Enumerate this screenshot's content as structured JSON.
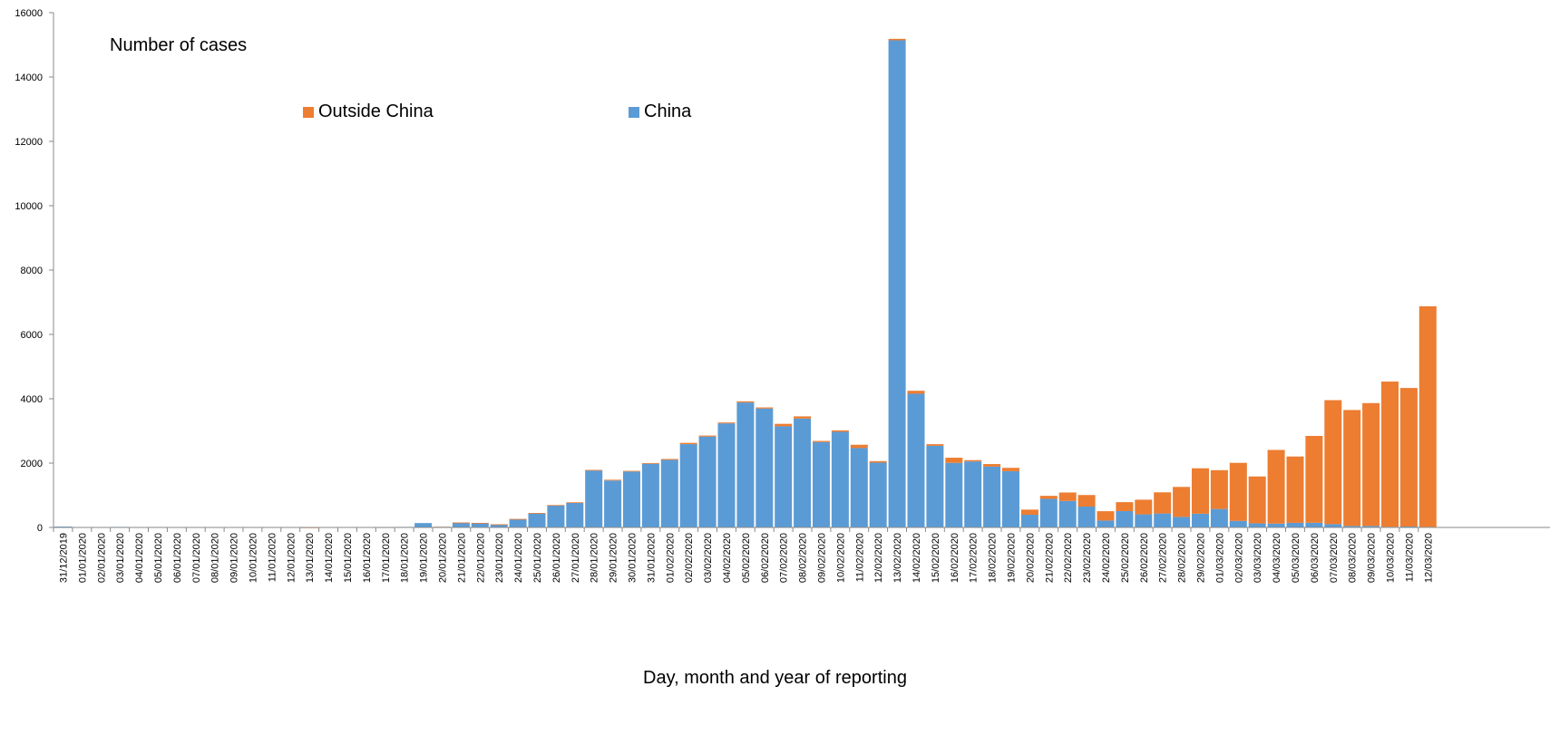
{
  "chart_data": {
    "type": "bar",
    "stacked": true,
    "title": "",
    "ylabel_note": "Number of cases",
    "xlabel": "Day, month and year of reporting",
    "ylim": [
      0,
      16000
    ],
    "yticks": [
      0,
      2000,
      4000,
      6000,
      8000,
      10000,
      12000,
      14000,
      16000
    ],
    "grid": false,
    "legend_placement": "top-center",
    "categories": [
      "31/12/2019",
      "01/01/2020",
      "02/01/2020",
      "03/01/2020",
      "04/01/2020",
      "05/01/2020",
      "06/01/2020",
      "07/01/2020",
      "08/01/2020",
      "09/01/2020",
      "10/01/2020",
      "11/01/2020",
      "12/01/2020",
      "13/01/2020",
      "14/01/2020",
      "15/01/2020",
      "16/01/2020",
      "17/01/2020",
      "18/01/2020",
      "19/01/2020",
      "20/01/2020",
      "21/01/2020",
      "22/01/2020",
      "23/01/2020",
      "24/01/2020",
      "25/01/2020",
      "26/01/2020",
      "27/01/2020",
      "28/01/2020",
      "29/01/2020",
      "30/01/2020",
      "31/01/2020",
      "01/02/2020",
      "02/02/2020",
      "03/02/2020",
      "04/02/2020",
      "05/02/2020",
      "06/02/2020",
      "07/02/2020",
      "08/02/2020",
      "09/02/2020",
      "10/02/2020",
      "11/02/2020",
      "12/02/2020",
      "13/02/2020",
      "14/02/2020",
      "15/02/2020",
      "16/02/2020",
      "17/02/2020",
      "18/02/2020",
      "19/02/2020",
      "20/02/2020",
      "21/02/2020",
      "22/02/2020",
      "23/02/2020",
      "24/02/2020",
      "25/02/2020",
      "26/02/2020",
      "27/02/2020",
      "28/02/2020",
      "29/02/2020",
      "01/03/2020",
      "02/03/2020",
      "03/03/2020",
      "04/03/2020",
      "05/03/2020",
      "06/03/2020",
      "07/03/2020",
      "08/03/2020",
      "09/03/2020",
      "10/03/2020",
      "11/03/2020",
      "12/03/2020"
    ],
    "series": [
      {
        "name": "China",
        "color": "#5B9BD5",
        "values": [
          27,
          0,
          0,
          17,
          0,
          15,
          0,
          0,
          0,
          0,
          0,
          0,
          0,
          1,
          0,
          4,
          0,
          4,
          17,
          136,
          19,
          151,
          140,
          97,
          259,
          444,
          688,
          769,
          1771,
          1459,
          1737,
          1981,
          2099,
          2589,
          2825,
          3235,
          3884,
          3697,
          3143,
          3385,
          2652,
          2973,
          2467,
          2015,
          15141,
          4156,
          2538,
          2007,
          2052,
          1890,
          1749,
          394,
          889,
          823,
          648,
          214,
          508,
          406,
          433,
          327,
          427,
          573,
          202,
          125,
          119,
          143,
          146,
          102,
          46,
          45,
          20,
          29,
          17
        ]
      },
      {
        "name": "Outside China",
        "color": "#ED7D31",
        "values": [
          0,
          0,
          0,
          0,
          0,
          0,
          0,
          0,
          0,
          0,
          0,
          0,
          0,
          1,
          0,
          0,
          0,
          2,
          0,
          0,
          1,
          3,
          2,
          2,
          4,
          6,
          8,
          12,
          18,
          24,
          22,
          21,
          28,
          40,
          32,
          28,
          36,
          34,
          77,
          68,
          37,
          43,
          103,
          46,
          46,
          92,
          51,
          160,
          40,
          80,
          103,
          160,
          93,
          263,
          360,
          291,
          278,
          456,
          658,
          932,
          1411,
          1207,
          1806,
          1459,
          2290,
          2062,
          2699,
          3854,
          3604,
          3820,
          4514,
          4306,
          6857
        ]
      }
    ]
  },
  "legend": {
    "items": [
      {
        "label": "Outside China",
        "color": "#ED7D31"
      },
      {
        "label": "China",
        "color": "#5B9BD5"
      }
    ]
  }
}
